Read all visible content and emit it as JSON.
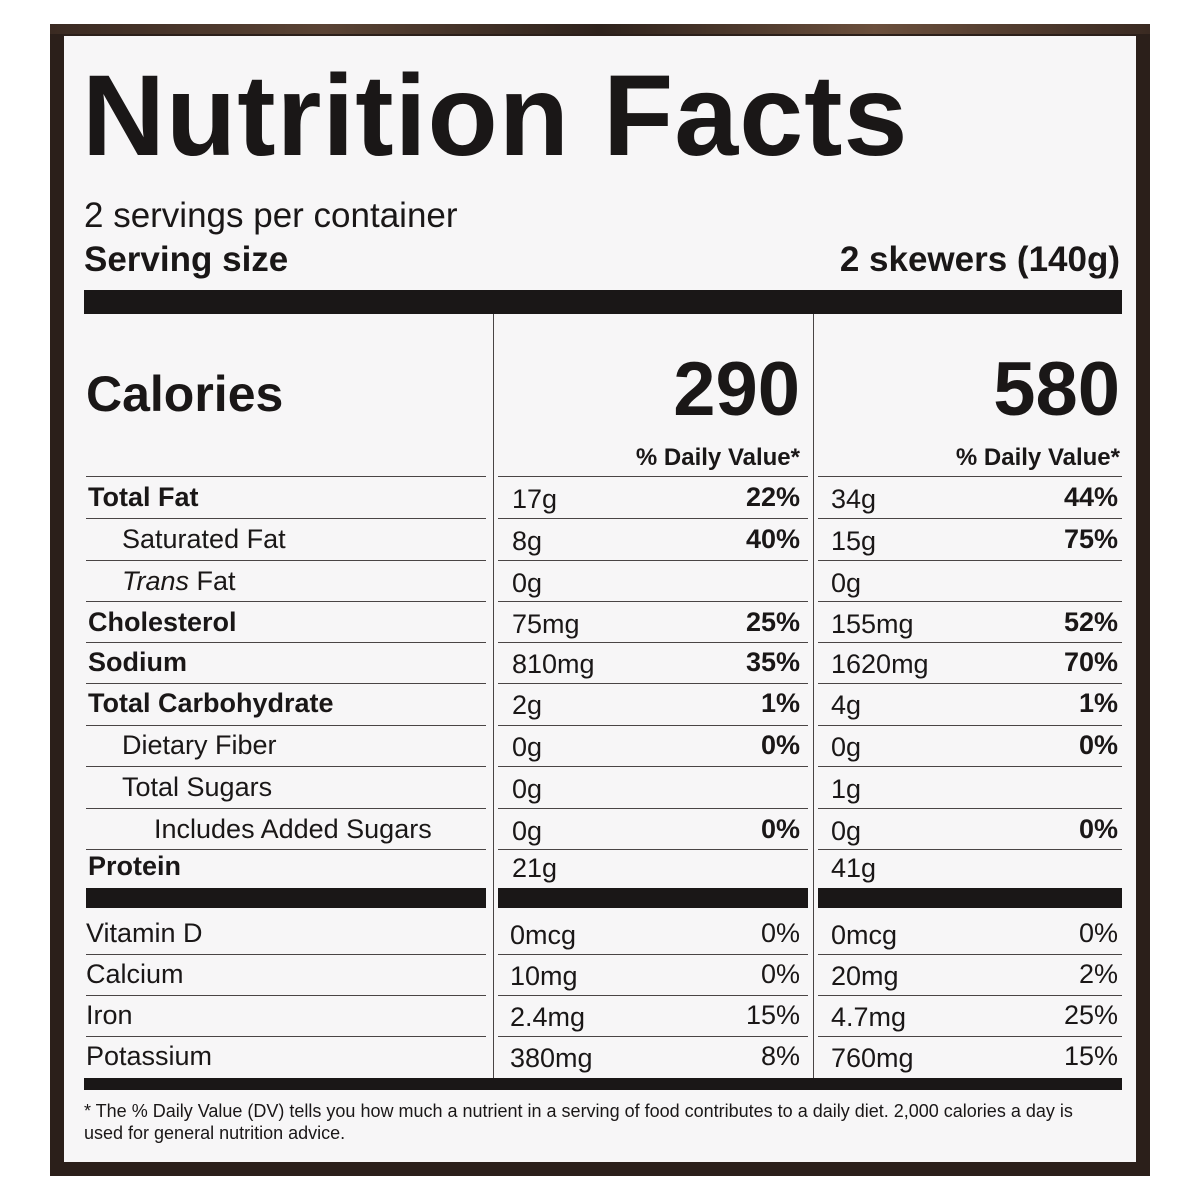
{
  "title": "Nutrition Facts",
  "servings_per_container": "2 servings per container",
  "serving_size": {
    "label": "Serving size",
    "value": "2 skewers (140g)"
  },
  "calories": {
    "label": "Calories",
    "per_serving": "290",
    "per_container": "580"
  },
  "daily_value_header": "% Daily Value*",
  "nutrients": [
    {
      "name": "Total Fat",
      "bold": true,
      "indent": 0,
      "serving_amount": "17g",
      "serving_dv": "22%",
      "container_amount": "34g",
      "container_dv": "44%"
    },
    {
      "name": "Saturated Fat",
      "bold": false,
      "indent": 1,
      "serving_amount": "8g",
      "serving_dv": "40%",
      "container_amount": "15g",
      "container_dv": "75%"
    },
    {
      "name_italic": "Trans",
      "name": " Fat",
      "bold": false,
      "indent": 1,
      "serving_amount": "0g",
      "serving_dv": "",
      "container_amount": "0g",
      "container_dv": ""
    },
    {
      "name": "Cholesterol",
      "bold": true,
      "indent": 0,
      "serving_amount": "75mg",
      "serving_dv": "25%",
      "container_amount": "155mg",
      "container_dv": "52%"
    },
    {
      "name": "Sodium",
      "bold": true,
      "indent": 0,
      "serving_amount": "810mg",
      "serving_dv": "35%",
      "container_amount": "1620mg",
      "container_dv": "70%"
    },
    {
      "name": "Total Carbohydrate",
      "bold": true,
      "indent": 0,
      "serving_amount": "2g",
      "serving_dv": "1%",
      "container_amount": "4g",
      "container_dv": "1%"
    },
    {
      "name": "Dietary Fiber",
      "bold": false,
      "indent": 1,
      "serving_amount": "0g",
      "serving_dv": "0%",
      "container_amount": "0g",
      "container_dv": "0%"
    },
    {
      "name": "Total Sugars",
      "bold": false,
      "indent": 1,
      "serving_amount": "0g",
      "serving_dv": "",
      "container_amount": "1g",
      "container_dv": ""
    },
    {
      "name": "Includes Added Sugars",
      "bold": false,
      "indent": 2,
      "serving_amount": "0g",
      "serving_dv": "0%",
      "container_amount": "0g",
      "container_dv": "0%"
    },
    {
      "name": "Protein",
      "bold": true,
      "indent": 0,
      "serving_amount": "21g",
      "serving_dv": "",
      "container_amount": "41g",
      "container_dv": ""
    }
  ],
  "vitamins": [
    {
      "name": "Vitamin D",
      "serving_amount": "0mcg",
      "serving_dv": "0%",
      "container_amount": "0mcg",
      "container_dv": "0%"
    },
    {
      "name": "Calcium",
      "serving_amount": "10mg",
      "serving_dv": "0%",
      "container_amount": "20mg",
      "container_dv": "2%"
    },
    {
      "name": "Iron",
      "serving_amount": "2.4mg",
      "serving_dv": "15%",
      "container_amount": "4.7mg",
      "container_dv": "25%"
    },
    {
      "name": "Potassium",
      "serving_amount": "380mg",
      "serving_dv": "8%",
      "container_amount": "760mg",
      "container_dv": "15%"
    }
  ],
  "footnote": "* The % Daily Value (DV) tells you how much a nutrient in  a serving of food contributes to a daily diet. 2,000 calories a day is used for general nutrition advice.",
  "colors": {
    "ink": "#1a1717",
    "label_background": "#f7f6f7",
    "package_border": "#2b1f1a"
  }
}
